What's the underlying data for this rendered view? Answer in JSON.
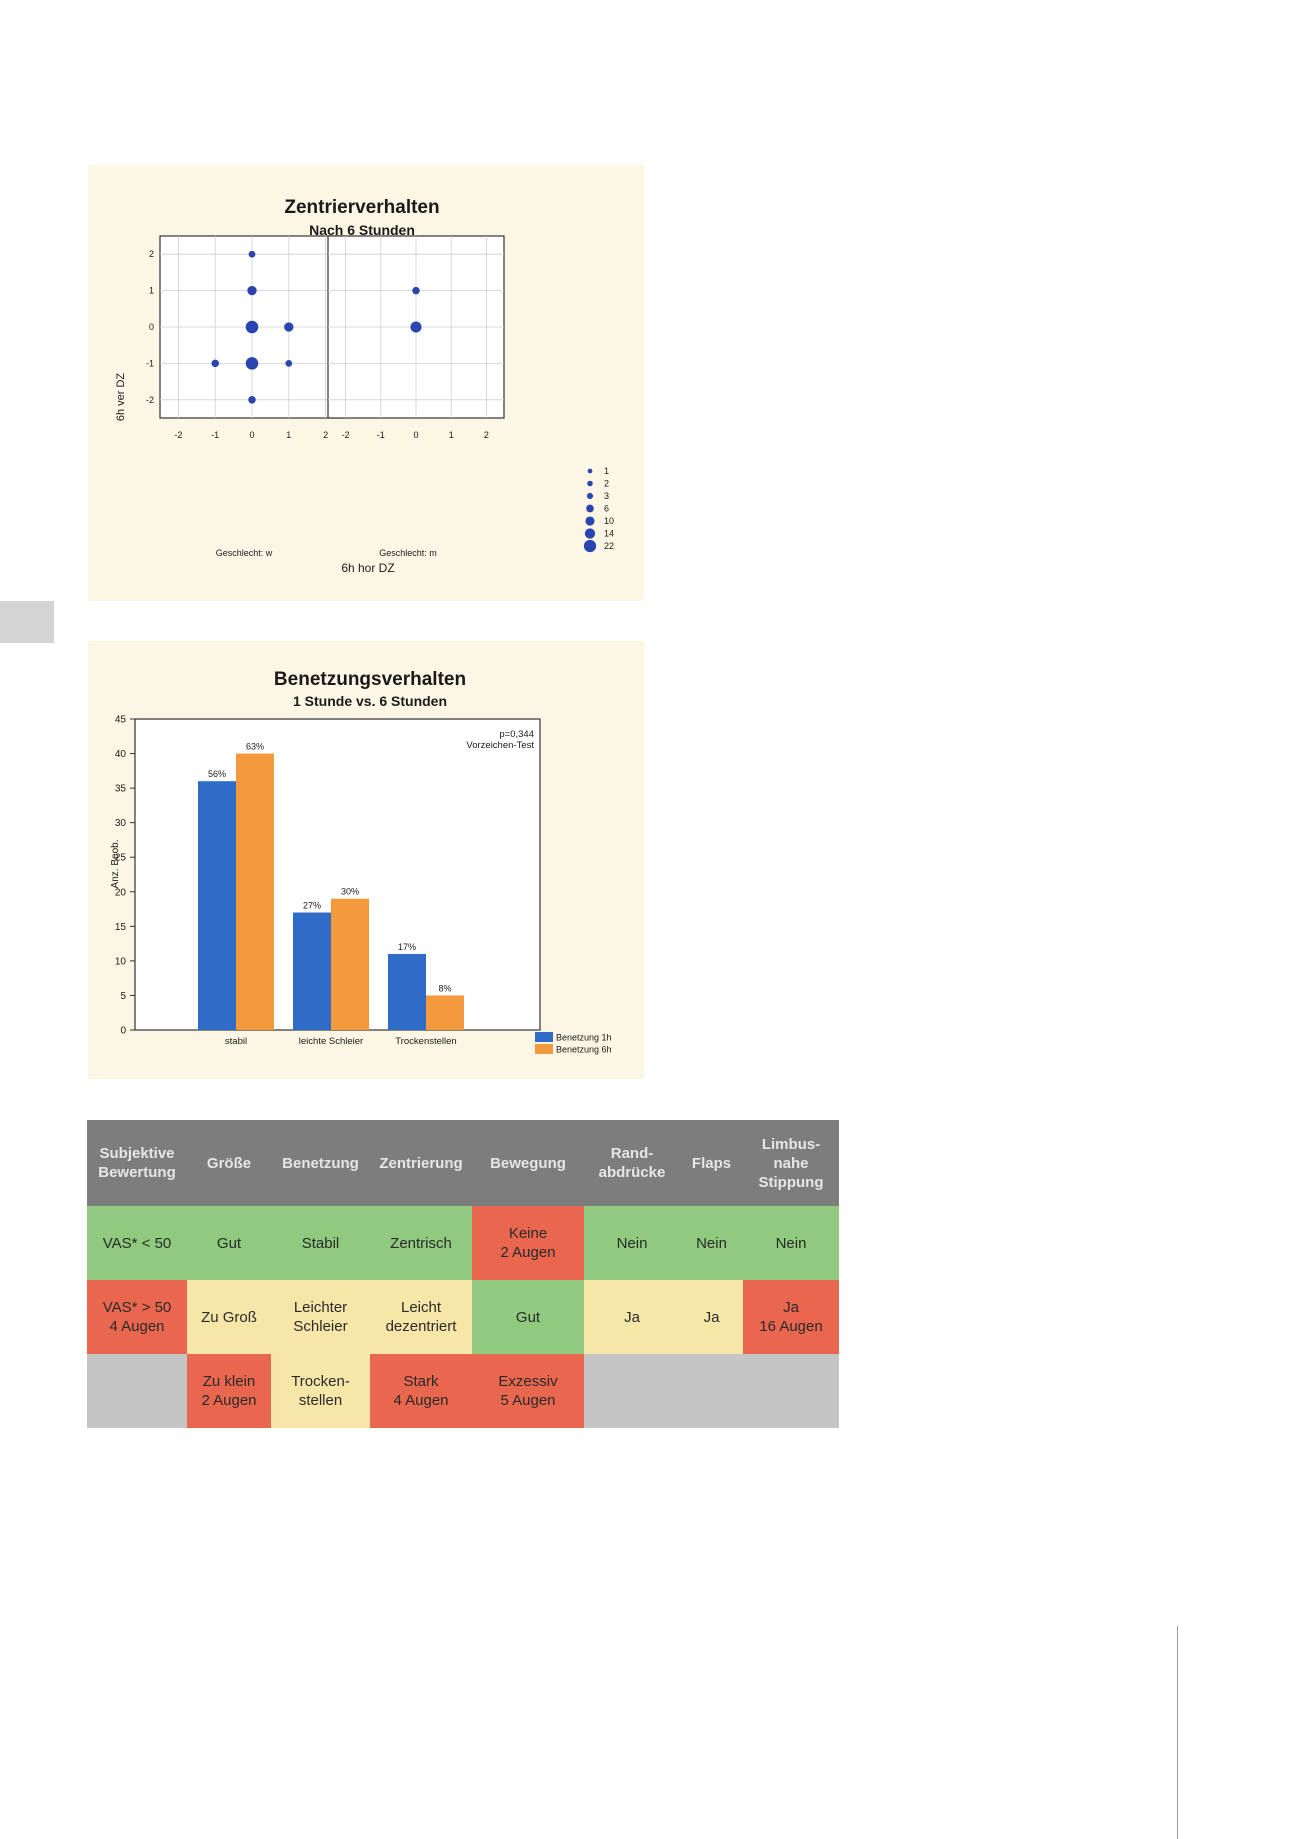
{
  "chart_data": [
    {
      "type": "scatter",
      "title": "Zentrierverhalten",
      "subtitle": "Nach 6 Stunden",
      "xlabel": "6h hor DZ",
      "ylabel": "6h ver DZ",
      "xlim": [
        -2.5,
        2.5
      ],
      "ylim": [
        -2.5,
        2.5
      ],
      "x_ticks": [
        "-2",
        "-1",
        "0",
        "1",
        "2"
      ],
      "y_ticks": [
        "2",
        "1",
        "0",
        "-1",
        "-2"
      ],
      "grid": true,
      "marker_color": "#2a44b0",
      "panels": [
        {
          "label": "Geschlecht: w",
          "points": [
            {
              "x": 0,
              "y": 2,
              "n": 2
            },
            {
              "x": 0,
              "y": 1,
              "n": 6
            },
            {
              "x": 0,
              "y": 0,
              "n": 14
            },
            {
              "x": 1,
              "y": 0,
              "n": 6
            },
            {
              "x": -1,
              "y": -1,
              "n": 3
            },
            {
              "x": 0,
              "y": -1,
              "n": 14
            },
            {
              "x": 1,
              "y": -1,
              "n": 2
            },
            {
              "x": 0,
              "y": -2,
              "n": 3
            }
          ]
        },
        {
          "label": "Geschlecht: m",
          "points": [
            {
              "x": 0,
              "y": 1,
              "n": 3
            },
            {
              "x": 0,
              "y": 0,
              "n": 10
            }
          ]
        }
      ],
      "size_legend": [
        "1",
        "2",
        "3",
        "6",
        "10",
        "14",
        "22"
      ]
    },
    {
      "type": "bar",
      "title": "Benetzungsverhalten",
      "subtitle": "1 Stunde vs. 6 Stunden",
      "ylabel": "Anz. Beob.",
      "categories": [
        "stabil",
        "leichte Schleier",
        "Trockenstellen"
      ],
      "ylim": [
        0,
        45
      ],
      "y_ticks": [
        "0",
        "5",
        "10",
        "15",
        "20",
        "25",
        "30",
        "35",
        "40",
        "45"
      ],
      "series": [
        {
          "name": "Benetzung 1h",
          "color": "#2f6cc8",
          "values": [
            36,
            17,
            11
          ],
          "labels": [
            "56%",
            "27%",
            "17%"
          ]
        },
        {
          "name": "Benetzung 6h",
          "color": "#f39a3e",
          "values": [
            40,
            19,
            5
          ],
          "labels": [
            "63%",
            "30%",
            "8%"
          ]
        }
      ],
      "annotation": [
        "p=0,344",
        "Vorzeichen-Test"
      ],
      "legend": "bottom-right",
      "grid": false
    }
  ],
  "table": {
    "headers": [
      "Subjektive Bewertung",
      "Größe",
      "Benetzung",
      "Zentrierung",
      "Bewegung",
      "Rand-abdrücke",
      "Flaps",
      "Limbus-nahe Stippung"
    ],
    "header_lines": [
      "Subjektive\nBewertung",
      "Größe",
      "Benetzung",
      "Zentrierung",
      "Bewegung",
      "Rand-\nabdrücke",
      "Flaps",
      "Limbus-\nnahe\nStippung"
    ],
    "rows": [
      [
        {
          "text": "VAS* < 50",
          "color": "green"
        },
        {
          "text": "Gut",
          "color": "green"
        },
        {
          "text": "Stabil",
          "color": "green"
        },
        {
          "text": "Zentrisch",
          "color": "green"
        },
        {
          "text": "Keine\n2 Augen",
          "color": "red"
        },
        {
          "text": "Nein",
          "color": "green"
        },
        {
          "text": "Nein",
          "color": "green"
        },
        {
          "text": "Nein",
          "color": "green"
        }
      ],
      [
        {
          "text": "VAS* > 50\n4 Augen",
          "color": "red"
        },
        {
          "text": "Zu Groß",
          "color": "yellow"
        },
        {
          "text": "Leichter\nSchleier",
          "color": "yellow"
        },
        {
          "text": "Leicht\ndezentriert",
          "color": "yellow"
        },
        {
          "text": "Gut",
          "color": "green"
        },
        {
          "text": "Ja",
          "color": "yellow"
        },
        {
          "text": "Ja",
          "color": "yellow"
        },
        {
          "text": "Ja\n16 Augen",
          "color": "red"
        }
      ],
      [
        {
          "text": "",
          "color": "grey"
        },
        {
          "text": "Zu klein\n2 Augen",
          "color": "red"
        },
        {
          "text": "Trocken-\nstellen",
          "color": "yellow"
        },
        {
          "text": "Stark\n4  Augen",
          "color": "red"
        },
        {
          "text": "Exzessiv\n5 Augen",
          "color": "red"
        },
        {
          "text": "",
          "color": "grey"
        },
        {
          "text": "",
          "color": "grey"
        },
        {
          "text": "",
          "color": "grey"
        }
      ]
    ]
  }
}
